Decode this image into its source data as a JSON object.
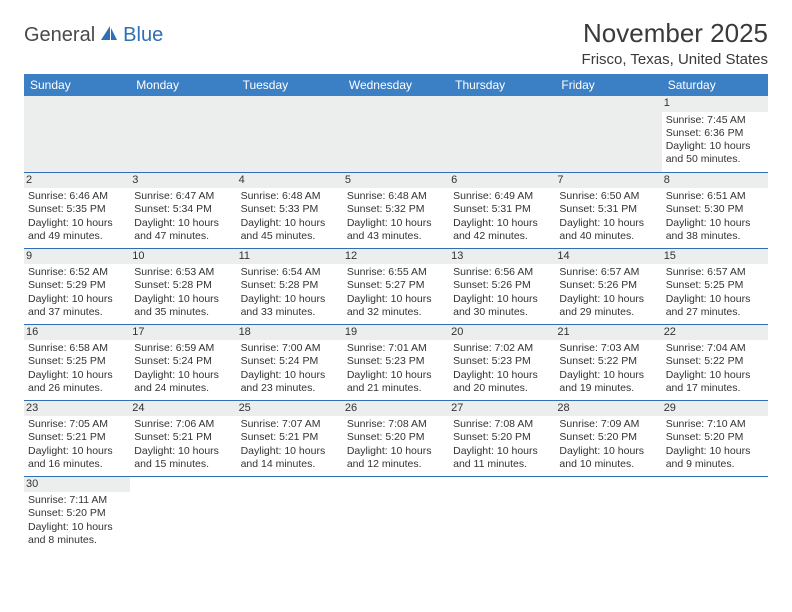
{
  "logo": {
    "part1": "General",
    "part2": "Blue"
  },
  "title": "November 2025",
  "location": "Frisco, Texas, United States",
  "colors": {
    "header_bg": "#3b7fc4",
    "header_text": "#ffffff",
    "daynum_bg": "#eceded",
    "border": "#2e6fb5",
    "logo_gray": "#4a4a4a",
    "logo_blue": "#2e6fb5"
  },
  "weekdays": [
    "Sunday",
    "Monday",
    "Tuesday",
    "Wednesday",
    "Thursday",
    "Friday",
    "Saturday"
  ],
  "weeks": [
    [
      null,
      null,
      null,
      null,
      null,
      null,
      {
        "n": "1",
        "sr": "Sunrise: 7:45 AM",
        "ss": "Sunset: 6:36 PM",
        "dl1": "Daylight: 10 hours",
        "dl2": "and 50 minutes."
      }
    ],
    [
      {
        "n": "2",
        "sr": "Sunrise: 6:46 AM",
        "ss": "Sunset: 5:35 PM",
        "dl1": "Daylight: 10 hours",
        "dl2": "and 49 minutes."
      },
      {
        "n": "3",
        "sr": "Sunrise: 6:47 AM",
        "ss": "Sunset: 5:34 PM",
        "dl1": "Daylight: 10 hours",
        "dl2": "and 47 minutes."
      },
      {
        "n": "4",
        "sr": "Sunrise: 6:48 AM",
        "ss": "Sunset: 5:33 PM",
        "dl1": "Daylight: 10 hours",
        "dl2": "and 45 minutes."
      },
      {
        "n": "5",
        "sr": "Sunrise: 6:48 AM",
        "ss": "Sunset: 5:32 PM",
        "dl1": "Daylight: 10 hours",
        "dl2": "and 43 minutes."
      },
      {
        "n": "6",
        "sr": "Sunrise: 6:49 AM",
        "ss": "Sunset: 5:31 PM",
        "dl1": "Daylight: 10 hours",
        "dl2": "and 42 minutes."
      },
      {
        "n": "7",
        "sr": "Sunrise: 6:50 AM",
        "ss": "Sunset: 5:31 PM",
        "dl1": "Daylight: 10 hours",
        "dl2": "and 40 minutes."
      },
      {
        "n": "8",
        "sr": "Sunrise: 6:51 AM",
        "ss": "Sunset: 5:30 PM",
        "dl1": "Daylight: 10 hours",
        "dl2": "and 38 minutes."
      }
    ],
    [
      {
        "n": "9",
        "sr": "Sunrise: 6:52 AM",
        "ss": "Sunset: 5:29 PM",
        "dl1": "Daylight: 10 hours",
        "dl2": "and 37 minutes."
      },
      {
        "n": "10",
        "sr": "Sunrise: 6:53 AM",
        "ss": "Sunset: 5:28 PM",
        "dl1": "Daylight: 10 hours",
        "dl2": "and 35 minutes."
      },
      {
        "n": "11",
        "sr": "Sunrise: 6:54 AM",
        "ss": "Sunset: 5:28 PM",
        "dl1": "Daylight: 10 hours",
        "dl2": "and 33 minutes."
      },
      {
        "n": "12",
        "sr": "Sunrise: 6:55 AM",
        "ss": "Sunset: 5:27 PM",
        "dl1": "Daylight: 10 hours",
        "dl2": "and 32 minutes."
      },
      {
        "n": "13",
        "sr": "Sunrise: 6:56 AM",
        "ss": "Sunset: 5:26 PM",
        "dl1": "Daylight: 10 hours",
        "dl2": "and 30 minutes."
      },
      {
        "n": "14",
        "sr": "Sunrise: 6:57 AM",
        "ss": "Sunset: 5:26 PM",
        "dl1": "Daylight: 10 hours",
        "dl2": "and 29 minutes."
      },
      {
        "n": "15",
        "sr": "Sunrise: 6:57 AM",
        "ss": "Sunset: 5:25 PM",
        "dl1": "Daylight: 10 hours",
        "dl2": "and 27 minutes."
      }
    ],
    [
      {
        "n": "16",
        "sr": "Sunrise: 6:58 AM",
        "ss": "Sunset: 5:25 PM",
        "dl1": "Daylight: 10 hours",
        "dl2": "and 26 minutes."
      },
      {
        "n": "17",
        "sr": "Sunrise: 6:59 AM",
        "ss": "Sunset: 5:24 PM",
        "dl1": "Daylight: 10 hours",
        "dl2": "and 24 minutes."
      },
      {
        "n": "18",
        "sr": "Sunrise: 7:00 AM",
        "ss": "Sunset: 5:24 PM",
        "dl1": "Daylight: 10 hours",
        "dl2": "and 23 minutes."
      },
      {
        "n": "19",
        "sr": "Sunrise: 7:01 AM",
        "ss": "Sunset: 5:23 PM",
        "dl1": "Daylight: 10 hours",
        "dl2": "and 21 minutes."
      },
      {
        "n": "20",
        "sr": "Sunrise: 7:02 AM",
        "ss": "Sunset: 5:23 PM",
        "dl1": "Daylight: 10 hours",
        "dl2": "and 20 minutes."
      },
      {
        "n": "21",
        "sr": "Sunrise: 7:03 AM",
        "ss": "Sunset: 5:22 PM",
        "dl1": "Daylight: 10 hours",
        "dl2": "and 19 minutes."
      },
      {
        "n": "22",
        "sr": "Sunrise: 7:04 AM",
        "ss": "Sunset: 5:22 PM",
        "dl1": "Daylight: 10 hours",
        "dl2": "and 17 minutes."
      }
    ],
    [
      {
        "n": "23",
        "sr": "Sunrise: 7:05 AM",
        "ss": "Sunset: 5:21 PM",
        "dl1": "Daylight: 10 hours",
        "dl2": "and 16 minutes."
      },
      {
        "n": "24",
        "sr": "Sunrise: 7:06 AM",
        "ss": "Sunset: 5:21 PM",
        "dl1": "Daylight: 10 hours",
        "dl2": "and 15 minutes."
      },
      {
        "n": "25",
        "sr": "Sunrise: 7:07 AM",
        "ss": "Sunset: 5:21 PM",
        "dl1": "Daylight: 10 hours",
        "dl2": "and 14 minutes."
      },
      {
        "n": "26",
        "sr": "Sunrise: 7:08 AM",
        "ss": "Sunset: 5:20 PM",
        "dl1": "Daylight: 10 hours",
        "dl2": "and 12 minutes."
      },
      {
        "n": "27",
        "sr": "Sunrise: 7:08 AM",
        "ss": "Sunset: 5:20 PM",
        "dl1": "Daylight: 10 hours",
        "dl2": "and 11 minutes."
      },
      {
        "n": "28",
        "sr": "Sunrise: 7:09 AM",
        "ss": "Sunset: 5:20 PM",
        "dl1": "Daylight: 10 hours",
        "dl2": "and 10 minutes."
      },
      {
        "n": "29",
        "sr": "Sunrise: 7:10 AM",
        "ss": "Sunset: 5:20 PM",
        "dl1": "Daylight: 10 hours",
        "dl2": "and 9 minutes."
      }
    ],
    [
      {
        "n": "30",
        "sr": "Sunrise: 7:11 AM",
        "ss": "Sunset: 5:20 PM",
        "dl1": "Daylight: 10 hours",
        "dl2": "and 8 minutes."
      },
      null,
      null,
      null,
      null,
      null,
      null
    ]
  ]
}
